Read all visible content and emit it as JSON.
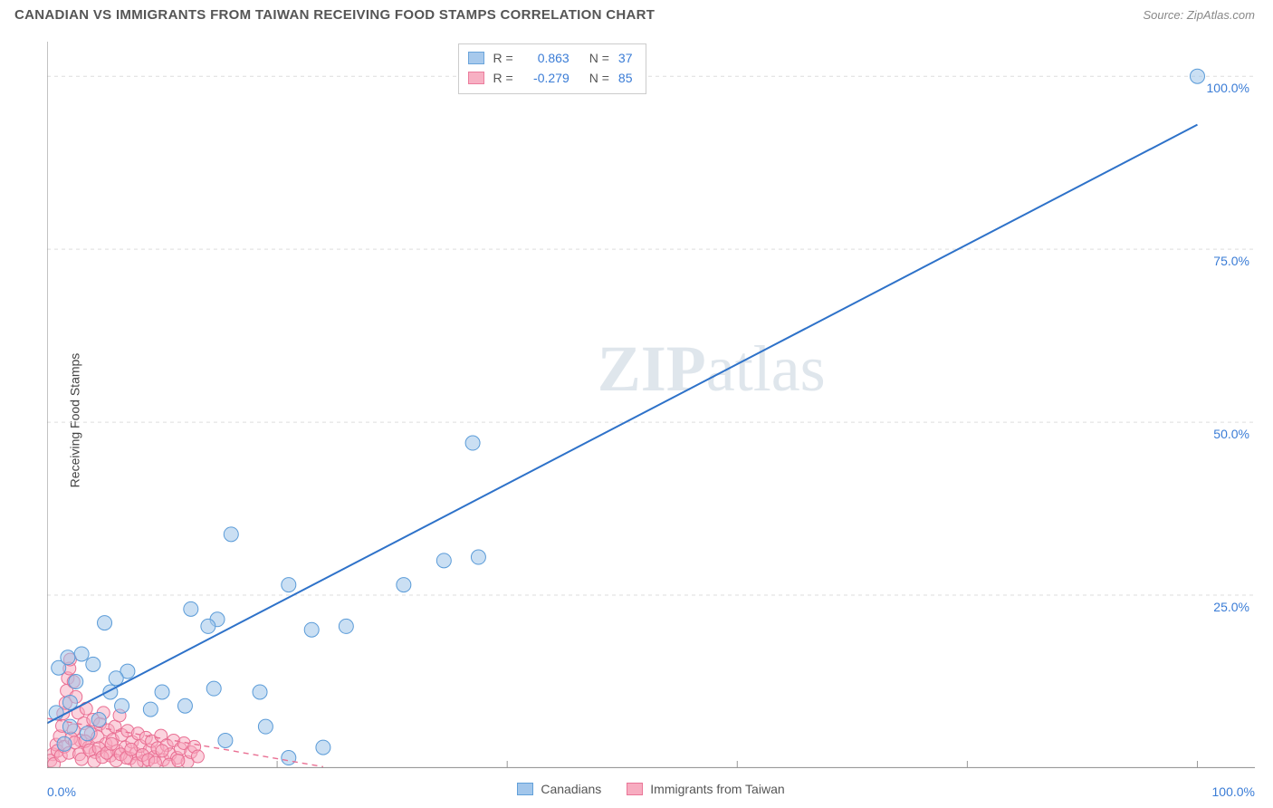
{
  "header": {
    "title": "CANADIAN VS IMMIGRANTS FROM TAIWAN RECEIVING FOOD STAMPS CORRELATION CHART",
    "source_prefix": "Source: ",
    "source_name": "ZipAtlas.com"
  },
  "ylabel": "Receiving Food Stamps",
  "axis": {
    "xmin": 0,
    "xmax": 105,
    "ymin": 0,
    "ymax": 105,
    "x_left_label": "0.0%",
    "x_right_label": "100.0%",
    "y_ticks": [
      {
        "v": 25,
        "label": "25.0%"
      },
      {
        "v": 50,
        "label": "50.0%"
      },
      {
        "v": 75,
        "label": "75.0%"
      },
      {
        "v": 100,
        "label": "100.0%"
      }
    ],
    "x_ticks_major": [
      0,
      20,
      40,
      60,
      80,
      100
    ],
    "xtick_len": 8,
    "grid_color": "#dddddd",
    "grid_dash": "4,4",
    "axis_color": "#999999",
    "tick_label_color": "#3a7cd6",
    "tick_fontsize": 14
  },
  "series": {
    "blue": {
      "name": "Canadians",
      "fill": "#9ec4ea",
      "fill_opacity": 0.55,
      "stroke": "#5a9bd8",
      "line_color": "#2e72c9",
      "line_width": 2,
      "trend": {
        "x1": 0,
        "y1": 6.5,
        "x2": 100,
        "y2": 93
      },
      "r": 0.863,
      "n": 37,
      "marker_r": 8,
      "points": [
        {
          "x": 100,
          "y": 100
        },
        {
          "x": 37,
          "y": 47
        },
        {
          "x": 34.5,
          "y": 30
        },
        {
          "x": 37.5,
          "y": 30.5
        },
        {
          "x": 31,
          "y": 26.5
        },
        {
          "x": 16,
          "y": 33.8
        },
        {
          "x": 21,
          "y": 26.5
        },
        {
          "x": 14.8,
          "y": 21.5
        },
        {
          "x": 12.5,
          "y": 23
        },
        {
          "x": 5,
          "y": 21
        },
        {
          "x": 4,
          "y": 15
        },
        {
          "x": 3,
          "y": 16.5
        },
        {
          "x": 7,
          "y": 14
        },
        {
          "x": 14,
          "y": 20.5
        },
        {
          "x": 23,
          "y": 20
        },
        {
          "x": 26,
          "y": 20.5
        },
        {
          "x": 18.5,
          "y": 11
        },
        {
          "x": 14.5,
          "y": 11.5
        },
        {
          "x": 10,
          "y": 11
        },
        {
          "x": 12,
          "y": 9
        },
        {
          "x": 9,
          "y": 8.5
        },
        {
          "x": 6.5,
          "y": 9
        },
        {
          "x": 5.5,
          "y": 11
        },
        {
          "x": 4.5,
          "y": 7
        },
        {
          "x": 3.5,
          "y": 5
        },
        {
          "x": 2,
          "y": 6
        },
        {
          "x": 1.5,
          "y": 3.5
        },
        {
          "x": 2.5,
          "y": 12.5
        },
        {
          "x": 19,
          "y": 6
        },
        {
          "x": 21,
          "y": 1.5
        },
        {
          "x": 15.5,
          "y": 4
        },
        {
          "x": 24,
          "y": 3
        },
        {
          "x": 1,
          "y": 14.5
        },
        {
          "x": 1.8,
          "y": 16
        },
        {
          "x": 0.8,
          "y": 8
        },
        {
          "x": 2,
          "y": 9.5
        },
        {
          "x": 6,
          "y": 13
        }
      ]
    },
    "pink": {
      "name": "Immigrants from Taiwan",
      "fill": "#f7a8bd",
      "fill_opacity": 0.5,
      "stroke": "#e96f93",
      "line_color": "#e96f93",
      "line_width": 1.4,
      "line_dash": "6,5",
      "trend": {
        "x1": 0,
        "y1": 7.2,
        "x2": 24,
        "y2": 0.2
      },
      "r": -0.279,
      "n": 85,
      "marker_r": 7,
      "points": [
        {
          "x": 0.5,
          "y": 2
        },
        {
          "x": 0.8,
          "y": 3.4
        },
        {
          "x": 1.1,
          "y": 4.6
        },
        {
          "x": 1.3,
          "y": 6.1
        },
        {
          "x": 1.4,
          "y": 7.9
        },
        {
          "x": 1.6,
          "y": 9.4
        },
        {
          "x": 1.7,
          "y": 11.2
        },
        {
          "x": 1.8,
          "y": 13.0
        },
        {
          "x": 1.95,
          "y": 14.4
        },
        {
          "x": 2.0,
          "y": 15.7
        },
        {
          "x": 2.3,
          "y": 12.5
        },
        {
          "x": 2.5,
          "y": 10.3
        },
        {
          "x": 2.7,
          "y": 8.0
        },
        {
          "x": 2.3,
          "y": 5.5
        },
        {
          "x": 2.9,
          "y": 4.0
        },
        {
          "x": 3.2,
          "y": 6.5
        },
        {
          "x": 3.4,
          "y": 8.6
        },
        {
          "x": 3.6,
          "y": 3.0
        },
        {
          "x": 3.8,
          "y": 5.0
        },
        {
          "x": 4.0,
          "y": 7.0
        },
        {
          "x": 4.2,
          "y": 2.3
        },
        {
          "x": 4.4,
          "y": 4.5
        },
        {
          "x": 4.6,
          "y": 6.4
        },
        {
          "x": 4.9,
          "y": 8.0
        },
        {
          "x": 5.1,
          "y": 3.5
        },
        {
          "x": 5.3,
          "y": 5.5
        },
        {
          "x": 5.5,
          "y": 1.8
        },
        {
          "x": 5.7,
          "y": 4.1
        },
        {
          "x": 5.9,
          "y": 6.0
        },
        {
          "x": 6.1,
          "y": 2.5
        },
        {
          "x": 6.3,
          "y": 7.6
        },
        {
          "x": 6.5,
          "y": 4.8
        },
        {
          "x": 6.8,
          "y": 3.0
        },
        {
          "x": 7.0,
          "y": 5.4
        },
        {
          "x": 7.2,
          "y": 1.4
        },
        {
          "x": 7.4,
          "y": 3.8
        },
        {
          "x": 7.7,
          "y": 2.1
        },
        {
          "x": 7.9,
          "y": 5.0
        },
        {
          "x": 8.1,
          "y": 3.2
        },
        {
          "x": 8.4,
          "y": 1.0
        },
        {
          "x": 8.6,
          "y": 4.4
        },
        {
          "x": 8.9,
          "y": 2.6
        },
        {
          "x": 9.1,
          "y": 3.9
        },
        {
          "x": 9.3,
          "y": 1.6
        },
        {
          "x": 9.6,
          "y": 2.9
        },
        {
          "x": 9.9,
          "y": 4.7
        },
        {
          "x": 10.1,
          "y": 1.2
        },
        {
          "x": 10.4,
          "y": 3.3
        },
        {
          "x": 10.7,
          "y": 2.0
        },
        {
          "x": 11.0,
          "y": 4.0
        },
        {
          "x": 11.3,
          "y": 1.5
        },
        {
          "x": 11.6,
          "y": 2.8
        },
        {
          "x": 11.9,
          "y": 3.6
        },
        {
          "x": 12.2,
          "y": 0.9
        },
        {
          "x": 12.5,
          "y": 2.3
        },
        {
          "x": 12.8,
          "y": 3.1
        },
        {
          "x": 13.1,
          "y": 1.7
        },
        {
          "x": 0.3,
          "y": 1.1
        },
        {
          "x": 0.6,
          "y": 0.6
        },
        {
          "x": 0.9,
          "y": 2.5
        },
        {
          "x": 1.2,
          "y": 1.8
        },
        {
          "x": 1.5,
          "y": 3.1
        },
        {
          "x": 1.9,
          "y": 2.2
        },
        {
          "x": 2.1,
          "y": 4.3
        },
        {
          "x": 2.4,
          "y": 3.7
        },
        {
          "x": 2.8,
          "y": 2.0
        },
        {
          "x": 3.0,
          "y": 1.3
        },
        {
          "x": 3.3,
          "y": 3.9
        },
        {
          "x": 3.7,
          "y": 2.6
        },
        {
          "x": 4.1,
          "y": 1.0
        },
        {
          "x": 4.5,
          "y": 2.9
        },
        {
          "x": 4.8,
          "y": 1.6
        },
        {
          "x": 5.2,
          "y": 2.2
        },
        {
          "x": 5.6,
          "y": 3.5
        },
        {
          "x": 6.0,
          "y": 1.1
        },
        {
          "x": 6.4,
          "y": 2.0
        },
        {
          "x": 6.9,
          "y": 1.5
        },
        {
          "x": 7.3,
          "y": 2.7
        },
        {
          "x": 7.8,
          "y": 0.7
        },
        {
          "x": 8.3,
          "y": 1.9
        },
        {
          "x": 8.8,
          "y": 1.2
        },
        {
          "x": 9.4,
          "y": 0.8
        },
        {
          "x": 10.0,
          "y": 2.5
        },
        {
          "x": 10.6,
          "y": 0.5
        },
        {
          "x": 11.4,
          "y": 1.1
        }
      ]
    }
  },
  "stats_box": {
    "rows": [
      {
        "swatch": "blue",
        "r_label": "R =",
        "r_val": "0.863",
        "n_label": "N =",
        "n_val": "37"
      },
      {
        "swatch": "pink",
        "r_label": "R =",
        "r_val": "-0.279",
        "n_label": "N =",
        "n_val": "85"
      }
    ]
  },
  "legend_bottom": [
    {
      "swatch": "blue",
      "label": "Canadians"
    },
    {
      "swatch": "pink",
      "label": "Immigrants from Taiwan"
    }
  ],
  "watermark": {
    "zip": "ZIP",
    "atlas": "atlas",
    "color": "#dfe6ec",
    "fontsize": 72
  }
}
